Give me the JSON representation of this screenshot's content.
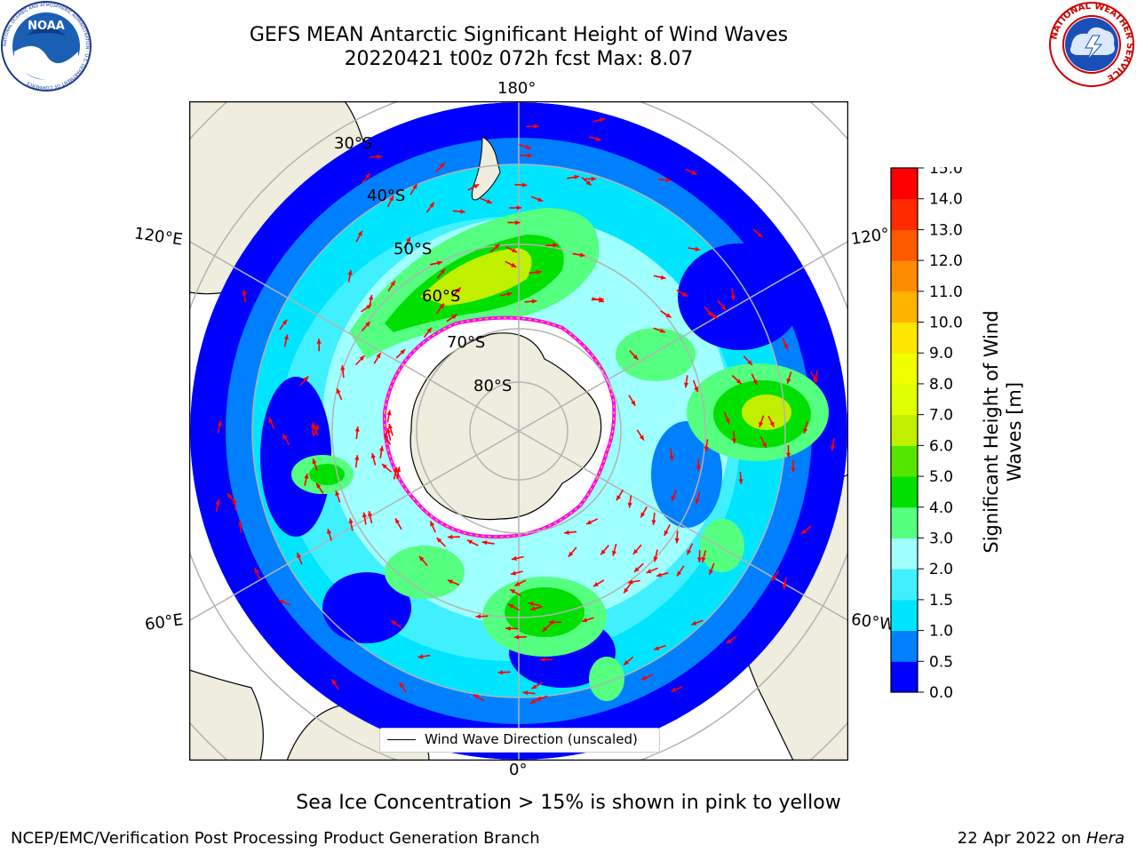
{
  "title": {
    "line1": "GEFS MEAN Antarctic Significant Height of Wind Waves",
    "line2": "20220421 t00z 072h fcst   Max: 8.07"
  },
  "logos": {
    "left": {
      "name": "noaa-logo",
      "text": "NOAA",
      "ring_text": "NATIONAL OCEANIC AND ATMOSPHERIC ADMINISTRATION · U.S. DEPARTMENT OF COMMERCE"
    },
    "right": {
      "name": "nws-logo",
      "ring_text": "NATIONAL WEATHER SERVICE"
    }
  },
  "map": {
    "projection": "south-polar-stereographic",
    "lon_labels": {
      "top": "180°",
      "bottom": "0°",
      "upper_left": "120°E",
      "lower_left": "60°E",
      "upper_right": "120°",
      "lower_right": "60°W"
    },
    "lat_labels": [
      "30°S",
      "40°S",
      "50°S",
      "60°S",
      "70°S",
      "80°S"
    ],
    "legend_label": "Wind Wave Direction (unscaled)",
    "colors": {
      "land": "#efedde",
      "ice": "#ffffff",
      "arrow": "#ff0000",
      "grid": "#b3b3b3",
      "ice_edge": [
        "#ff00ff",
        "#ffc000"
      ]
    }
  },
  "colorbar": {
    "label": "Significant Height of Wind Waves [m]",
    "ticks": [
      "0.0",
      "0.5",
      "1.0",
      "1.5",
      "2.0",
      "3.0",
      "4.0",
      "5.0",
      "6.0",
      "7.0",
      "8.0",
      "9.0",
      "10.0",
      "11.0",
      "12.0",
      "13.0",
      "14.0",
      "15.0"
    ],
    "colors": [
      "#0000ff",
      "#0080ff",
      "#00e5ff",
      "#40f0ff",
      "#a0ffff",
      "#55ff80",
      "#00e000",
      "#55e600",
      "#c0f000",
      "#e0ff00",
      "#f0ff00",
      "#ffe600",
      "#ffb400",
      "#ff8c00",
      "#ff5a00",
      "#ff2a00",
      "#ff0000"
    ]
  },
  "subtitle": "Sea Ice Concentration > 15% is shown in pink to yellow",
  "footer": {
    "left": "NCEP/EMC/Verification Post Processing Product Generation Branch",
    "right_prefix": "22 Apr 2022 on",
    "right_host": "Hera"
  }
}
